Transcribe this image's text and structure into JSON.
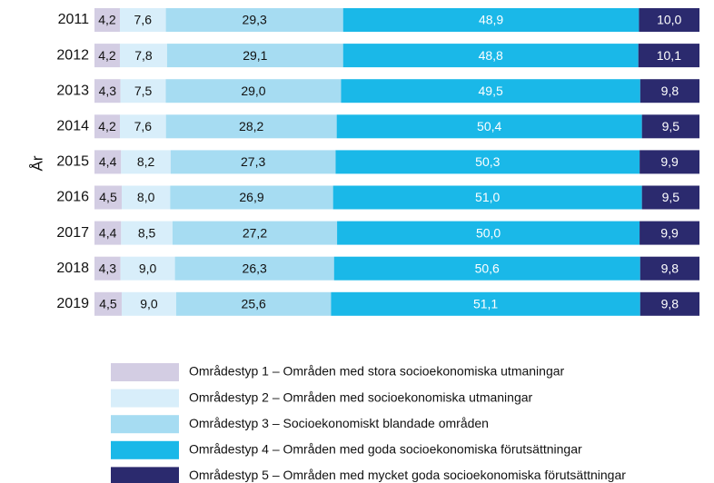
{
  "chart_data": {
    "type": "stacked-bar-horizontal",
    "y_axis_label": "År",
    "categories": [
      "2011",
      "2012",
      "2013",
      "2014",
      "2015",
      "2016",
      "2017",
      "2018",
      "2019"
    ],
    "series": [
      {
        "name": "Områdestyp 1 – Områden med stora socioekonomiska utmaningar",
        "color": "#d3cde3",
        "label_color": "#111111",
        "values": [
          4.2,
          4.2,
          4.3,
          4.2,
          4.4,
          4.5,
          4.4,
          4.3,
          4.5
        ],
        "value_labels": [
          "4,2",
          "4,2",
          "4,3",
          "4,2",
          "4,4",
          "4,5",
          "4,4",
          "4,3",
          "4,5"
        ]
      },
      {
        "name": "Områdestyp 2 – Områden med socioekonomiska utmaningar",
        "color": "#d8eefa",
        "label_color": "#111111",
        "values": [
          7.6,
          7.8,
          7.5,
          7.6,
          8.2,
          8.0,
          8.5,
          9.0,
          9.0
        ],
        "value_labels": [
          "7,6",
          "7,8",
          "7,5",
          "7,6",
          "8,2",
          "8,0",
          "8,5",
          "9,0",
          "9,0"
        ]
      },
      {
        "name": "Områdestyp 3 – Socioekonomiskt blandade områden",
        "color": "#a6dcf2",
        "label_color": "#111111",
        "values": [
          29.3,
          29.1,
          29.0,
          28.2,
          27.3,
          26.9,
          27.2,
          26.3,
          25.6
        ],
        "value_labels": [
          "29,3",
          "29,1",
          "29,0",
          "28,2",
          "27,3",
          "26,9",
          "27,2",
          "26,3",
          "25,6"
        ]
      },
      {
        "name": "Områdestyp 4 – Områden med goda socioekonomiska förutsättningar",
        "color": "#1ab8e8",
        "label_color": "#ffffff",
        "values": [
          48.9,
          48.8,
          49.5,
          50.4,
          50.3,
          51.0,
          50.0,
          50.6,
          51.1
        ],
        "value_labels": [
          "48,9",
          "48,8",
          "49,5",
          "50,4",
          "50,3",
          "51,0",
          "50,0",
          "50,6",
          "51,1"
        ]
      },
      {
        "name": "Områdestyp 5 – Områden med mycket goda socioekonomiska förutsättningar",
        "color": "#2b2a6e",
        "label_color": "#ffffff",
        "values": [
          10.0,
          10.1,
          9.8,
          9.5,
          9.9,
          9.5,
          9.9,
          9.8,
          9.8
        ],
        "value_labels": [
          "10,0",
          "10,1",
          "9,8",
          "9,5",
          "9,9",
          "9,5",
          "9,9",
          "9,8",
          "9,8"
        ]
      }
    ]
  }
}
